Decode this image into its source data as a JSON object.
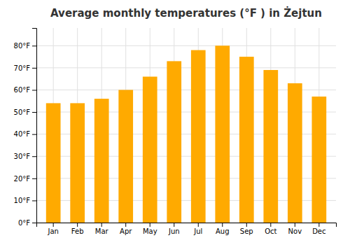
{
  "chart_data": {
    "type": "bar",
    "title": "Average monthly temperatures (°F ) in Żejtun",
    "categories": [
      "Jan",
      "Feb",
      "Mar",
      "Apr",
      "May",
      "Jun",
      "Jul",
      "Aug",
      "Sep",
      "Oct",
      "Nov",
      "Dec"
    ],
    "values": [
      54,
      54,
      56,
      60,
      66,
      73,
      78,
      80,
      75,
      69,
      63,
      57
    ],
    "color": "#FFAA00",
    "ylim": [
      0,
      88
    ],
    "yticks": [
      {
        "value": 0,
        "label": "0°F"
      },
      {
        "value": 10,
        "label": "10°F"
      },
      {
        "value": 20,
        "label": "20°F"
      },
      {
        "value": 30,
        "label": "30°F"
      },
      {
        "value": 40,
        "label": "40°F"
      },
      {
        "value": 50,
        "label": "50°F"
      },
      {
        "value": 60,
        "label": "60°F"
      },
      {
        "value": 70,
        "label": "70°F"
      },
      {
        "value": 80,
        "label": "80°F"
      }
    ],
    "grid": true
  }
}
